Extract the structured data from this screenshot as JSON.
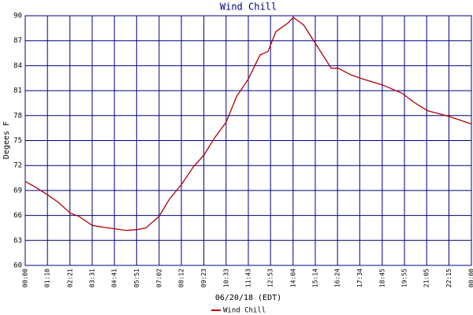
{
  "chart_data": {
    "type": "line",
    "title": "Wind Chill",
    "xlabel": "06/20/18 (EDT)",
    "ylabel": "Degees F",
    "x": [
      0,
      32,
      70,
      107,
      141,
      169,
      211,
      243,
      281,
      318,
      353,
      380,
      422,
      455,
      492,
      529,
      564,
      596,
      633,
      666,
      703,
      740,
      765,
      790,
      827,
      845,
      877,
      914,
      964,
      986,
      1026,
      1063,
      1125,
      1187,
      1225,
      1267,
      1336,
      1406
    ],
    "series": [
      {
        "name": "Wind Chill",
        "color": "#b00000",
        "values": [
          70.1,
          69.4,
          68.5,
          67.5,
          66.3,
          65.9,
          64.8,
          64.6,
          64.4,
          64.2,
          64.3,
          64.5,
          65.9,
          68.0,
          69.7,
          71.8,
          73.3,
          75.3,
          77.2,
          80.3,
          82.4,
          85.3,
          85.7,
          88.1,
          89.1,
          89.8,
          88.9,
          86.7,
          83.7,
          83.7,
          82.9,
          82.4,
          81.7,
          80.7,
          79.6,
          78.6,
          77.9,
          77.0
        ]
      }
    ],
    "xlim": [
      0,
      1406
    ],
    "xticks": [
      {
        "value": 0,
        "label": "00:00"
      },
      {
        "value": 70,
        "label": "01:10"
      },
      {
        "value": 141,
        "label": "02:21"
      },
      {
        "value": 211,
        "label": "03:31"
      },
      {
        "value": 281,
        "label": "04:41"
      },
      {
        "value": 351,
        "label": "05:51"
      },
      {
        "value": 422,
        "label": "07:02"
      },
      {
        "value": 492,
        "label": "08:12"
      },
      {
        "value": 563,
        "label": "09:23"
      },
      {
        "value": 633,
        "label": "10:33"
      },
      {
        "value": 703,
        "label": "11:43"
      },
      {
        "value": 773,
        "label": "12:53"
      },
      {
        "value": 844,
        "label": "14:04"
      },
      {
        "value": 914,
        "label": "15:14"
      },
      {
        "value": 984,
        "label": "16:24"
      },
      {
        "value": 1054,
        "label": "17:34"
      },
      {
        "value": 1125,
        "label": "18:45"
      },
      {
        "value": 1195,
        "label": "19:55"
      },
      {
        "value": 1265,
        "label": "21:05"
      },
      {
        "value": 1335,
        "label": "22:15"
      },
      {
        "value": 1406,
        "label": "00:00"
      }
    ],
    "ylim": [
      60,
      90
    ],
    "yticks": [
      60,
      63,
      66,
      69,
      72,
      75,
      78,
      81,
      84,
      87,
      90
    ],
    "grid": true,
    "grid_color": "#000080"
  }
}
